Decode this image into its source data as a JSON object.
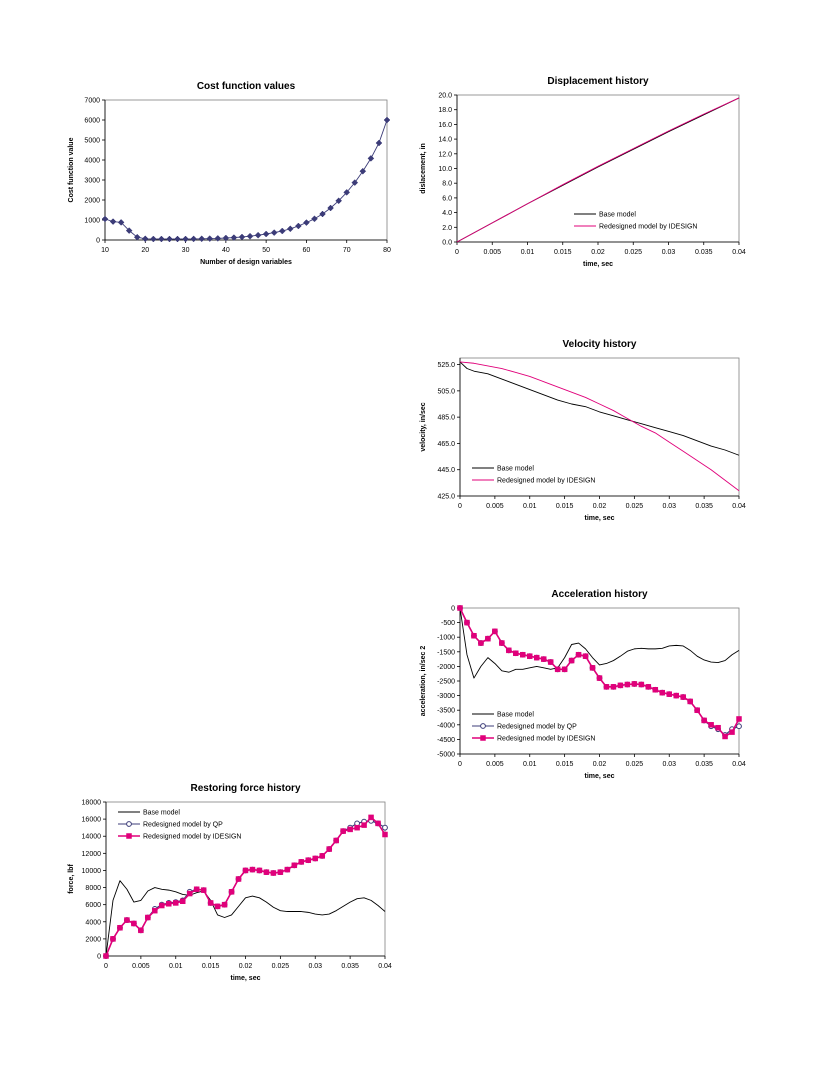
{
  "chart_data": [
    {
      "id": "cost",
      "type": "line",
      "title": "Cost function values",
      "xlabel": "Number of design variables",
      "ylabel": "Cost function value",
      "xlim": [
        10,
        80
      ],
      "ylim": [
        0,
        7000
      ],
      "xticks": [
        10,
        20,
        30,
        40,
        50,
        60,
        70,
        80
      ],
      "yticks": [
        0,
        1000,
        2000,
        3000,
        4000,
        5000,
        6000,
        7000
      ],
      "ytick_labels": [
        "0",
        "1000",
        "2000",
        "3000",
        "4000",
        "5000",
        "6000",
        "7000"
      ],
      "grid": false,
      "series": [
        {
          "color": "#3c3c78",
          "marker": "diamond",
          "x": [
            10,
            12,
            14,
            16,
            18,
            20,
            22,
            24,
            26,
            28,
            30,
            32,
            34,
            36,
            38,
            40,
            42,
            44,
            46,
            48,
            50,
            52,
            54,
            56,
            58,
            60,
            62,
            64,
            66,
            68,
            70,
            72,
            74,
            76,
            78,
            80
          ],
          "y": [
            1050,
            920,
            880,
            470,
            140,
            60,
            50,
            50,
            50,
            50,
            50,
            55,
            60,
            70,
            80,
            100,
            120,
            150,
            190,
            240,
            300,
            370,
            450,
            560,
            700,
            870,
            1060,
            1300,
            1600,
            1960,
            2380,
            2870,
            3440,
            4080,
            4850,
            6000
          ]
        }
      ]
    },
    {
      "id": "disp",
      "type": "line",
      "title": "Displacement history",
      "xlabel": "time, sec",
      "ylabel": "dislacement, in",
      "xlim": [
        0,
        0.04
      ],
      "ylim": [
        0,
        20
      ],
      "xticks": [
        0,
        0.005,
        0.01,
        0.015,
        0.02,
        0.025,
        0.03,
        0.035,
        0.04
      ],
      "yticks": [
        0,
        2,
        4,
        6,
        8,
        10,
        12,
        14,
        16,
        18,
        20
      ],
      "ytick_labels": [
        "0.0",
        "2.0",
        "4.0",
        "6.0",
        "8.0",
        "10.0",
        "12.0",
        "14.0",
        "16.0",
        "18.0",
        "20.0"
      ],
      "grid": false,
      "legend": "inside-bottom-right",
      "series": [
        {
          "name": "Base model",
          "color": "#000000",
          "x": [
            0,
            0.005,
            0.01,
            0.015,
            0.02,
            0.025,
            0.03,
            0.035,
            0.04
          ],
          "y": [
            0,
            2.6,
            5.2,
            7.7,
            10.2,
            12.6,
            15.0,
            17.3,
            19.6
          ]
        },
        {
          "name": "Redesigned model by IDESIGN",
          "color": "#e0007a",
          "x": [
            0,
            0.005,
            0.01,
            0.015,
            0.02,
            0.025,
            0.03,
            0.035,
            0.04
          ],
          "y": [
            0,
            2.6,
            5.2,
            7.8,
            10.3,
            12.7,
            15.1,
            17.4,
            19.6
          ]
        }
      ]
    },
    {
      "id": "vel",
      "type": "line",
      "title": "Velocity history",
      "xlabel": "time, sec",
      "ylabel": "velocity, in/sec",
      "xlim": [
        0,
        0.04
      ],
      "ylim": [
        425,
        530
      ],
      "xticks": [
        0,
        0.005,
        0.01,
        0.015,
        0.02,
        0.025,
        0.03,
        0.035,
        0.04
      ],
      "yticks": [
        425,
        445,
        465,
        485,
        505,
        525
      ],
      "ytick_labels": [
        "425.0",
        "445.0",
        "465.0",
        "485.0",
        "505.0",
        "525.0"
      ],
      "grid": false,
      "legend": "inside-bottom-left",
      "series": [
        {
          "name": "Base model",
          "color": "#000000",
          "x": [
            0,
            0.001,
            0.002,
            0.004,
            0.006,
            0.008,
            0.01,
            0.012,
            0.014,
            0.016,
            0.018,
            0.02,
            0.022,
            0.024,
            0.026,
            0.028,
            0.03,
            0.032,
            0.034,
            0.036,
            0.038,
            0.04
          ],
          "y": [
            527,
            522,
            520,
            518,
            514,
            510,
            506,
            502,
            498,
            495,
            493,
            489,
            486,
            483,
            480,
            477,
            474,
            471,
            467,
            463,
            460,
            456
          ]
        },
        {
          "name": "Redesigned model by IDESIGN",
          "color": "#e0007a",
          "x": [
            0,
            0.002,
            0.004,
            0.006,
            0.008,
            0.01,
            0.012,
            0.014,
            0.016,
            0.018,
            0.02,
            0.022,
            0.024,
            0.026,
            0.028,
            0.03,
            0.032,
            0.034,
            0.036,
            0.038,
            0.04
          ],
          "y": [
            527,
            526,
            524,
            522,
            519,
            516,
            512,
            508,
            504,
            500,
            495,
            490,
            484,
            478,
            473,
            466,
            459,
            452,
            445,
            437,
            429
          ]
        }
      ]
    },
    {
      "id": "acc",
      "type": "line",
      "title": "Acceleration history",
      "xlabel": "time, sec",
      "ylabel": "acceleration, in/sec 2",
      "xlim": [
        0,
        0.04
      ],
      "ylim": [
        -5000,
        0
      ],
      "xticks": [
        0,
        0.005,
        0.01,
        0.015,
        0.02,
        0.025,
        0.03,
        0.035,
        0.04
      ],
      "yticks": [
        -5000,
        -4500,
        -4000,
        -3500,
        -3000,
        -2500,
        -2000,
        -1500,
        -1000,
        -500,
        0
      ],
      "ytick_labels": [
        "-5000",
        "-4500",
        "-4000",
        "-3500",
        "-3000",
        "-2500",
        "-2000",
        "-1500",
        "-1000",
        "-500",
        "0"
      ],
      "grid": false,
      "legend": "inside-bottom-left",
      "series": [
        {
          "name": "Base model",
          "color": "#000000",
          "x": [
            0,
            0.001,
            0.002,
            0.003,
            0.004,
            0.005,
            0.006,
            0.007,
            0.008,
            0.009,
            0.01,
            0.011,
            0.012,
            0.013,
            0.014,
            0.015,
            0.016,
            0.017,
            0.018,
            0.019,
            0.02,
            0.021,
            0.022,
            0.023,
            0.024,
            0.025,
            0.026,
            0.027,
            0.028,
            0.029,
            0.03,
            0.031,
            0.032,
            0.033,
            0.034,
            0.035,
            0.036,
            0.037,
            0.038,
            0.039,
            0.04
          ],
          "y": [
            0,
            -1600,
            -2400,
            -2000,
            -1700,
            -1900,
            -2150,
            -2200,
            -2100,
            -2100,
            -2050,
            -2000,
            -2050,
            -2100,
            -2050,
            -1700,
            -1250,
            -1200,
            -1400,
            -1700,
            -1950,
            -1900,
            -1800,
            -1650,
            -1480,
            -1400,
            -1380,
            -1400,
            -1400,
            -1380,
            -1300,
            -1280,
            -1300,
            -1450,
            -1650,
            -1780,
            -1850,
            -1870,
            -1800,
            -1600,
            -1450
          ]
        },
        {
          "name": "Redesigned model by QP",
          "color": "#3c3c78",
          "marker": "circle",
          "x": [
            0,
            0.001,
            0.002,
            0.003,
            0.004,
            0.005,
            0.006,
            0.007,
            0.008,
            0.009,
            0.01,
            0.011,
            0.012,
            0.013,
            0.014,
            0.015,
            0.016,
            0.017,
            0.018,
            0.019,
            0.02,
            0.021,
            0.022,
            0.023,
            0.024,
            0.025,
            0.026,
            0.027,
            0.028,
            0.029,
            0.03,
            0.031,
            0.032,
            0.033,
            0.034,
            0.035,
            0.036,
            0.037,
            0.038,
            0.039,
            0.04
          ],
          "y": [
            0,
            -500,
            -950,
            -1200,
            -1050,
            -800,
            -1200,
            -1450,
            -1550,
            -1600,
            -1650,
            -1700,
            -1750,
            -1850,
            -2100,
            -2100,
            -1800,
            -1600,
            -1650,
            -2050,
            -2400,
            -2700,
            -2700,
            -2650,
            -2620,
            -2600,
            -2620,
            -2700,
            -2800,
            -2900,
            -2950,
            -3000,
            -3050,
            -3200,
            -3500,
            -3850,
            -4050,
            -4150,
            -4350,
            -4150,
            -4050
          ]
        },
        {
          "name": "Redesigned model by IDESIGN",
          "color": "#e0007a",
          "marker": "square",
          "x": [
            0,
            0.001,
            0.002,
            0.003,
            0.004,
            0.005,
            0.006,
            0.007,
            0.008,
            0.009,
            0.01,
            0.011,
            0.012,
            0.013,
            0.014,
            0.015,
            0.016,
            0.017,
            0.018,
            0.019,
            0.02,
            0.021,
            0.022,
            0.023,
            0.024,
            0.025,
            0.026,
            0.027,
            0.028,
            0.029,
            0.03,
            0.031,
            0.032,
            0.033,
            0.034,
            0.035,
            0.036,
            0.037,
            0.038,
            0.039,
            0.04
          ],
          "y": [
            0,
            -500,
            -950,
            -1200,
            -1050,
            -800,
            -1200,
            -1450,
            -1550,
            -1600,
            -1650,
            -1700,
            -1750,
            -1850,
            -2100,
            -2100,
            -1800,
            -1600,
            -1650,
            -2050,
            -2400,
            -2700,
            -2700,
            -2650,
            -2620,
            -2600,
            -2620,
            -2700,
            -2800,
            -2900,
            -2950,
            -3000,
            -3050,
            -3200,
            -3500,
            -3850,
            -4000,
            -4100,
            -4400,
            -4250,
            -3800
          ]
        }
      ]
    },
    {
      "id": "force",
      "type": "line",
      "title": "Restoring force history",
      "xlabel": "time, sec",
      "ylabel": "force, lbf",
      "xlim": [
        0,
        0.04
      ],
      "ylim": [
        0,
        18000
      ],
      "xticks": [
        0,
        0.005,
        0.01,
        0.015,
        0.02,
        0.025,
        0.03,
        0.035,
        0.04
      ],
      "yticks": [
        0,
        2000,
        4000,
        6000,
        8000,
        10000,
        12000,
        14000,
        16000,
        18000
      ],
      "ytick_labels": [
        "0",
        "2000",
        "4000",
        "6000",
        "8000",
        "10000",
        "12000",
        "14000",
        "16000",
        "18000"
      ],
      "grid": false,
      "legend": "inside-top-left",
      "series": [
        {
          "name": "Base model",
          "color": "#000000",
          "x": [
            0,
            0.001,
            0.002,
            0.003,
            0.004,
            0.005,
            0.006,
            0.007,
            0.008,
            0.009,
            0.01,
            0.011,
            0.012,
            0.013,
            0.014,
            0.015,
            0.016,
            0.017,
            0.018,
            0.019,
            0.02,
            0.021,
            0.022,
            0.023,
            0.024,
            0.025,
            0.026,
            0.027,
            0.028,
            0.029,
            0.03,
            0.031,
            0.032,
            0.033,
            0.034,
            0.035,
            0.036,
            0.037,
            0.038,
            0.039,
            0.04
          ],
          "y": [
            0,
            6500,
            8800,
            7800,
            6300,
            6500,
            7600,
            8000,
            7800,
            7700,
            7500,
            7200,
            7100,
            7400,
            7600,
            6500,
            4800,
            4500,
            4800,
            5800,
            6800,
            7000,
            6800,
            6300,
            5700,
            5300,
            5200,
            5200,
            5200,
            5100,
            4900,
            4800,
            4900,
            5300,
            5800,
            6300,
            6700,
            6800,
            6500,
            5900,
            5200
          ]
        },
        {
          "name": "Redesigned model by QP",
          "color": "#3c3c78",
          "marker": "circle",
          "x": [
            0,
            0.001,
            0.002,
            0.003,
            0.004,
            0.005,
            0.006,
            0.007,
            0.008,
            0.009,
            0.01,
            0.011,
            0.012,
            0.013,
            0.014,
            0.015,
            0.016,
            0.017,
            0.018,
            0.019,
            0.02,
            0.021,
            0.022,
            0.023,
            0.024,
            0.025,
            0.026,
            0.027,
            0.028,
            0.029,
            0.03,
            0.031,
            0.032,
            0.033,
            0.034,
            0.035,
            0.036,
            0.037,
            0.038,
            0.039,
            0.04
          ],
          "y": [
            0,
            2000,
            3300,
            4200,
            3800,
            3000,
            4500,
            5500,
            6000,
            6200,
            6300,
            6500,
            7500,
            7800,
            7700,
            6200,
            5800,
            6000,
            7500,
            9000,
            10000,
            10100,
            10000,
            9800,
            9700,
            9800,
            10100,
            10600,
            11000,
            11200,
            11400,
            11700,
            12500,
            13500,
            14600,
            15000,
            15500,
            15700,
            15800,
            15500,
            15000
          ]
        },
        {
          "name": "Redesigned model by IDESIGN",
          "color": "#e0007a",
          "marker": "square",
          "x": [
            0,
            0.001,
            0.002,
            0.003,
            0.004,
            0.005,
            0.006,
            0.007,
            0.008,
            0.009,
            0.01,
            0.011,
            0.012,
            0.013,
            0.014,
            0.015,
            0.016,
            0.017,
            0.018,
            0.019,
            0.02,
            0.021,
            0.022,
            0.023,
            0.024,
            0.025,
            0.026,
            0.027,
            0.028,
            0.029,
            0.03,
            0.031,
            0.032,
            0.033,
            0.034,
            0.035,
            0.036,
            0.037,
            0.038,
            0.039,
            0.04
          ],
          "y": [
            0,
            2000,
            3300,
            4200,
            3800,
            3000,
            4500,
            5300,
            5900,
            6100,
            6200,
            6400,
            7300,
            7800,
            7700,
            6200,
            5800,
            6000,
            7500,
            9000,
            10000,
            10100,
            10000,
            9800,
            9700,
            9800,
            10100,
            10600,
            11000,
            11200,
            11400,
            11700,
            12500,
            13500,
            14600,
            14800,
            15000,
            15300,
            16200,
            15500,
            14200
          ]
        }
      ]
    }
  ]
}
